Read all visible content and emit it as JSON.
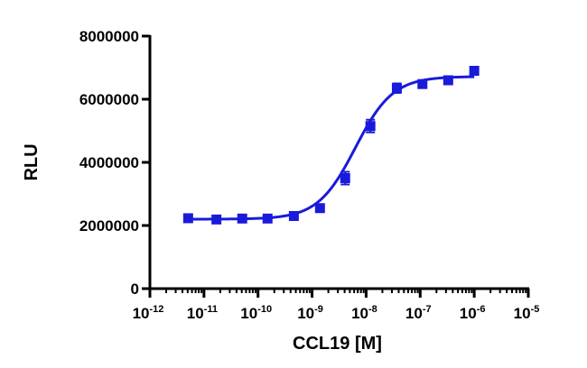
{
  "chart_data": {
    "type": "scatter",
    "xlabel": "CCL19 [M]",
    "ylabel": "RLU",
    "xscale": "log",
    "xlim_exponent": [
      -12,
      -5
    ],
    "ylim": [
      0,
      8000000
    ],
    "yticks": [
      {
        "value": 0,
        "label": "0"
      },
      {
        "value": 2000000,
        "label": "2000000"
      },
      {
        "value": 4000000,
        "label": "4000000"
      },
      {
        "value": 6000000,
        "label": "6000000"
      },
      {
        "value": 8000000,
        "label": "8000000"
      }
    ],
    "xticks": [
      {
        "exp": -12,
        "base": "10",
        "sup": "-12"
      },
      {
        "exp": -11,
        "base": "10",
        "sup": "-11"
      },
      {
        "exp": -10,
        "base": "10",
        "sup": "-10"
      },
      {
        "exp": -9,
        "base": "10",
        "sup": "-9"
      },
      {
        "exp": -8,
        "base": "10",
        "sup": "-8"
      },
      {
        "exp": -7,
        "base": "10",
        "sup": "-7"
      },
      {
        "exp": -6,
        "base": "10",
        "sup": "-6"
      },
      {
        "exp": -5,
        "base": "10",
        "sup": "-5"
      }
    ],
    "series": [
      {
        "color": "#1a1adb",
        "marker": "square",
        "x": [
          5.1e-12,
          1.7e-11,
          5.1e-11,
          1.5e-10,
          4.6e-10,
          1.4e-09,
          4.1e-09,
          1.2e-08,
          3.7e-08,
          1.1e-07,
          3.3e-07,
          1e-06
        ],
        "y": [
          2230000,
          2190000,
          2220000,
          2220000,
          2300000,
          2550000,
          3500000,
          5150000,
          6350000,
          6480000,
          6600000,
          6900000
        ],
        "err": [
          60000,
          60000,
          50000,
          50000,
          60000,
          70000,
          200000,
          200000,
          150000,
          100000,
          100000,
          120000
        ]
      }
    ],
    "fit": {
      "model": "4PL",
      "bottom": 2200000,
      "top": 6720000,
      "logEC50": -8.2,
      "hill": 1.25,
      "color": "#1a1adb"
    },
    "grid": false,
    "legend": "none"
  }
}
